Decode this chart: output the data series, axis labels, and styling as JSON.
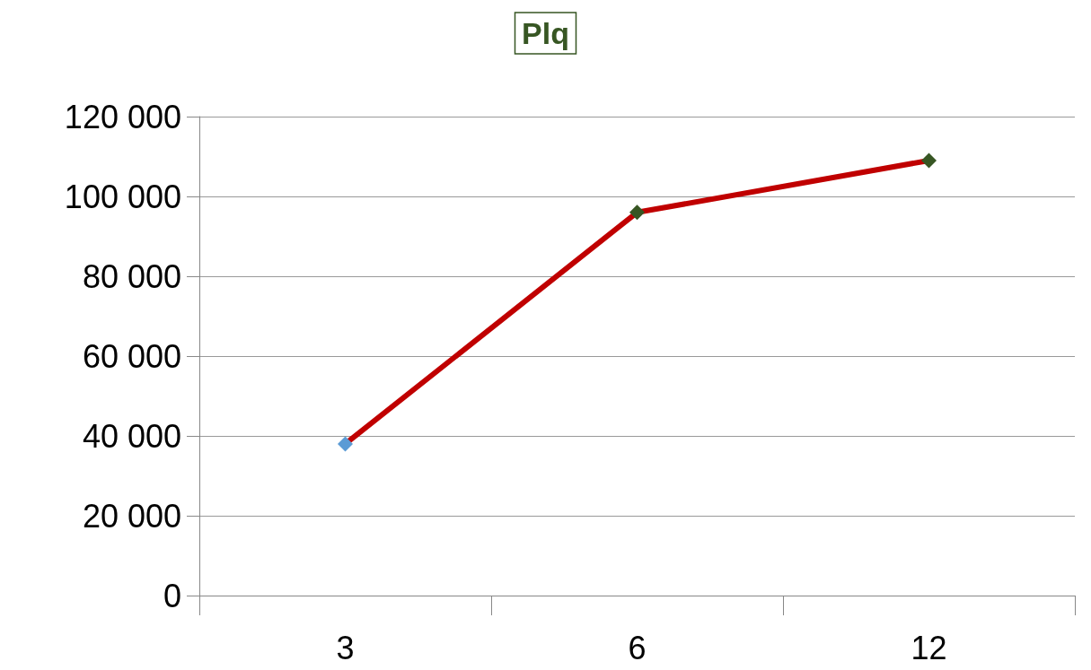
{
  "chart_data": {
    "type": "line",
    "title": "Plq",
    "categories": [
      "3",
      "6",
      "12"
    ],
    "series": [
      {
        "color": "#c00000",
        "colors": [
          "#5b9bd5",
          "#375623",
          "#375623"
        ],
        "values": [
          38000,
          96000,
          109000
        ]
      }
    ],
    "ylim": [
      0,
      120000
    ],
    "yticks": [
      0,
      20000,
      40000,
      60000,
      80000,
      100000,
      120000
    ],
    "grid": "y",
    "marker": "diamond",
    "line_style": "solid"
  }
}
